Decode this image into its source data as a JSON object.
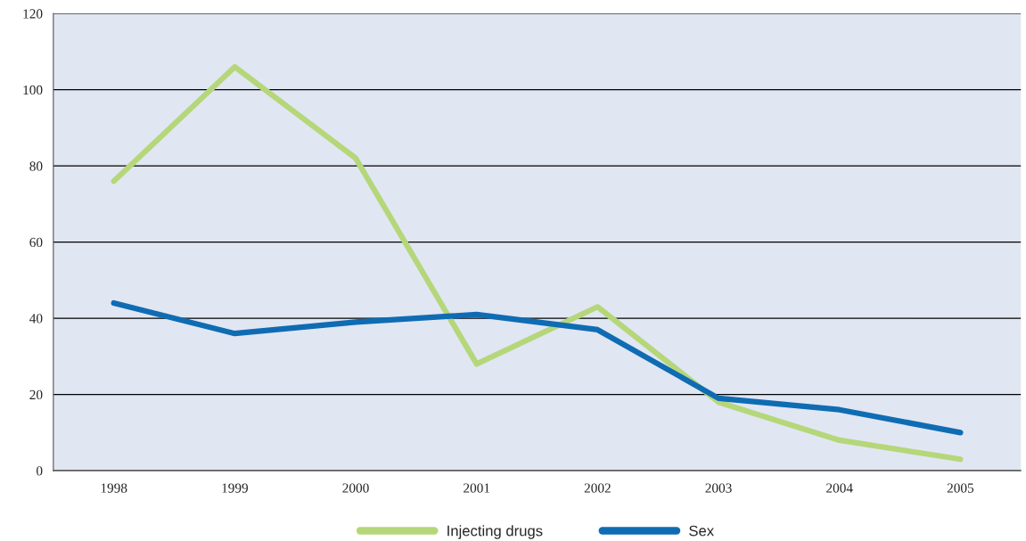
{
  "chart_data": {
    "type": "line",
    "categories": [
      "1998",
      "1999",
      "2000",
      "2001",
      "2002",
      "2003",
      "2004",
      "2005"
    ],
    "series": [
      {
        "name": "Injecting drugs",
        "color": "#b5d77a",
        "values": [
          76,
          106,
          82,
          28,
          43,
          18,
          8,
          3
        ]
      },
      {
        "name": "Sex",
        "color": "#0f6cb3",
        "values": [
          44,
          36,
          39,
          41,
          37,
          19,
          16,
          10
        ]
      }
    ],
    "ylim": [
      0,
      120
    ],
    "yticks": [
      0,
      20,
      40,
      60,
      80,
      100,
      120
    ],
    "grid": "y",
    "legend": "bottom",
    "marker": "none",
    "line_style": "solid"
  }
}
